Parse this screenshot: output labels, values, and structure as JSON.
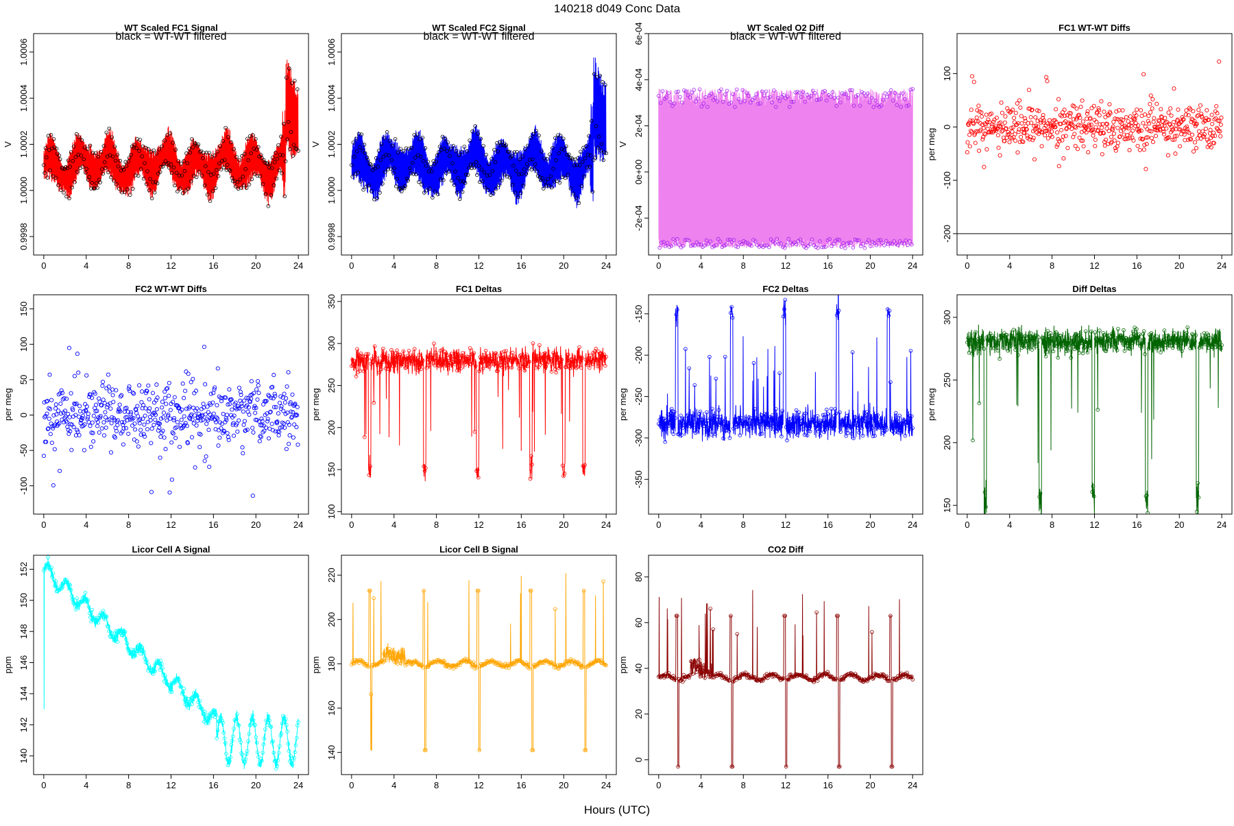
{
  "page": {
    "title": "140218   d049   Conc Data",
    "xlabel": "Hours (UTC)"
  },
  "chart_data": [
    {
      "title": "WT Scaled FC1 Signal",
      "annotation": "black = WT-WT filtered",
      "type": "line",
      "ylabel": "V",
      "color": "#ff0000",
      "overlay_color": "#000000",
      "gen": "signal",
      "xlim": [
        0,
        24
      ],
      "xticks": [
        0,
        4,
        8,
        12,
        16,
        20,
        24
      ],
      "ylim": [
        0.99972,
        1.00068
      ],
      "yticks": [
        0.9998,
        1.0,
        1.0002,
        1.0004,
        1.0006
      ],
      "ytick_labels": [
        "0.9998",
        "1.0000",
        "1.0002",
        "1.0004",
        "1.0006"
      ],
      "params": {
        "base": 1.00011,
        "amp": 0.00013,
        "osc": 5e-05
      }
    },
    {
      "title": "WT Scaled FC2 Signal",
      "annotation": "black = WT-WT filtered",
      "type": "line",
      "ylabel": "V",
      "color": "#0000ff",
      "overlay_color": "#000000",
      "gen": "signal",
      "xlim": [
        0,
        24
      ],
      "xticks": [
        0,
        4,
        8,
        12,
        16,
        20,
        24
      ],
      "ylim": [
        0.99972,
        1.00068
      ],
      "yticks": [
        0.9998,
        1.0,
        1.0002,
        1.0004,
        1.0006
      ],
      "ytick_labels": [
        "0.9998",
        "1.0000",
        "1.0002",
        "1.0004",
        "1.0006"
      ],
      "params": {
        "base": 1.00011,
        "amp": 0.00014,
        "osc": 5e-05
      }
    },
    {
      "title": "WT Scaled O2 Diff",
      "annotation": "black = WT-WT filtered",
      "type": "line",
      "ylabel": "V",
      "color": "#ee82ee",
      "overlay_color": "#a020f0",
      "gen": "o2diff",
      "xlim": [
        0,
        24
      ],
      "xticks": [
        0,
        4,
        8,
        12,
        16,
        20,
        24
      ],
      "ylim": [
        -0.00036,
        0.0006
      ],
      "yticks": [
        -0.0002,
        0,
        0.0002,
        0.0004,
        0.0006
      ],
      "ytick_labels": [
        "-2e-04",
        "0e+00",
        "2e-04",
        "4e-04",
        "6e-04"
      ],
      "params": {
        "top": 0.00028,
        "bottom": -0.00029
      }
    },
    {
      "title": "FC1 WT-WT Diffs",
      "type": "scatter",
      "ylabel": "per meg",
      "color": "#ff0000",
      "gen": "scatter",
      "hline": -200,
      "xlim": [
        0,
        24
      ],
      "xticks": [
        0,
        4,
        8,
        12,
        16,
        20,
        24
      ],
      "ylim": [
        -240,
        175
      ],
      "yticks": [
        -200,
        -100,
        0,
        100
      ],
      "ytick_labels": [
        "-200",
        "-100",
        "0",
        "100"
      ],
      "params": {
        "center": 0,
        "spread": 28,
        "n": 560
      }
    },
    {
      "title": "FC2 WT-WT Diffs",
      "type": "scatter",
      "ylabel": "per meg",
      "color": "#0000ff",
      "gen": "scatter",
      "xlim": [
        0,
        24
      ],
      "xticks": [
        0,
        4,
        8,
        12,
        16,
        20,
        24
      ],
      "ylim": [
        -140,
        170
      ],
      "yticks": [
        -100,
        -50,
        0,
        50,
        100,
        150
      ],
      "ytick_labels": [
        "-100",
        "-50",
        "0",
        "50",
        "100",
        "150"
      ],
      "params": {
        "center": 0,
        "spread": 30,
        "n": 560
      }
    },
    {
      "title": "FC1 Deltas",
      "type": "line",
      "ylabel": "per meg",
      "color": "#ff0000",
      "gen": "deltas",
      "xlim": [
        0,
        24
      ],
      "xticks": [
        0,
        4,
        8,
        12,
        16,
        20,
        24
      ],
      "ylim": [
        97,
        358
      ],
      "yticks": [
        100,
        150,
        200,
        250,
        300,
        350
      ],
      "ytick_labels": [
        "100",
        "150",
        "200",
        "250",
        "300",
        "350"
      ],
      "params": {
        "base": 280,
        "noise": 10,
        "spike": 150,
        "dir": -1,
        "spikes": [
          1.7,
          6.9,
          11.9,
          16.9,
          20.0,
          21.9
        ]
      }
    },
    {
      "title": "FC2 Deltas",
      "type": "line",
      "ylabel": "per meg",
      "color": "#0000ff",
      "gen": "deltas",
      "xlim": [
        0,
        24
      ],
      "xticks": [
        0,
        4,
        8,
        12,
        16,
        20,
        24
      ],
      "ylim": [
        -392,
        -127
      ],
      "yticks": [
        -350,
        -300,
        -250,
        -200,
        -150
      ],
      "ytick_labels": [
        "-350",
        "-300",
        "-250",
        "-200",
        "-150"
      ],
      "params": {
        "base": -283,
        "noise": 12,
        "spike": -148,
        "dir": 1,
        "spikes": [
          1.7,
          6.9,
          11.9,
          16.9,
          21.7
        ]
      }
    },
    {
      "title": "Diff Deltas",
      "type": "line",
      "ylabel": "per meg",
      "color": "#006400",
      "gen": "deltas",
      "xlim": [
        0,
        24
      ],
      "xticks": [
        0,
        4,
        8,
        12,
        16,
        20,
        24
      ],
      "ylim": [
        143,
        318
      ],
      "yticks": [
        150,
        200,
        250,
        300
      ],
      "ytick_labels": [
        "150",
        "200",
        "250",
        "300"
      ],
      "params": {
        "base": 281,
        "noise": 7,
        "spike": 155,
        "dir": -1,
        "spikes": [
          1.7,
          6.9,
          11.9,
          16.9,
          21.7
        ]
      }
    },
    {
      "title": "Licor Cell A Signal",
      "type": "line",
      "ylabel": "ppm",
      "color": "#00ffff",
      "gen": "licorA",
      "xlim": [
        0,
        24
      ],
      "xticks": [
        0,
        4,
        8,
        12,
        16,
        20,
        24
      ],
      "ylim": [
        138.8,
        152.9
      ],
      "yticks": [
        140,
        142,
        144,
        146,
        148,
        150,
        152
      ],
      "ytick_labels": [
        "140",
        "142",
        "144",
        "146",
        "148",
        "150",
        "152"
      ],
      "params": {
        "start": 152,
        "end": 141
      }
    },
    {
      "title": "Licor Cell B Signal",
      "type": "line",
      "ylabel": "ppm",
      "color": "#ffa500",
      "gen": "licor",
      "xlim": [
        0,
        24
      ],
      "xticks": [
        0,
        4,
        8,
        12,
        16,
        20,
        24
      ],
      "ylim": [
        130,
        229
      ],
      "yticks": [
        140,
        160,
        180,
        200,
        220
      ],
      "ytick_labels": [
        "140",
        "160",
        "180",
        "200",
        "220"
      ],
      "params": {
        "base": 180,
        "spike_hi": 213,
        "spike_lo": 141,
        "spikes": [
          1.7,
          6.8,
          11.9,
          16.9,
          21.9
        ]
      }
    },
    {
      "title": "CO2 Diff",
      "type": "line",
      "ylabel": "ppm",
      "color": "#8b0000",
      "gen": "licor",
      "xlim": [
        0,
        24
      ],
      "xticks": [
        0,
        4,
        8,
        12,
        16,
        20,
        24
      ],
      "ylim": [
        -6.5,
        89.5
      ],
      "yticks": [
        0,
        20,
        40,
        60,
        80
      ],
      "ytick_labels": [
        "0",
        "20",
        "40",
        "60",
        "80"
      ],
      "params": {
        "base": 36,
        "spike_hi": 63,
        "spike_lo": -3,
        "spikes": [
          1.7,
          6.8,
          11.9,
          16.9,
          21.9
        ]
      }
    }
  ]
}
